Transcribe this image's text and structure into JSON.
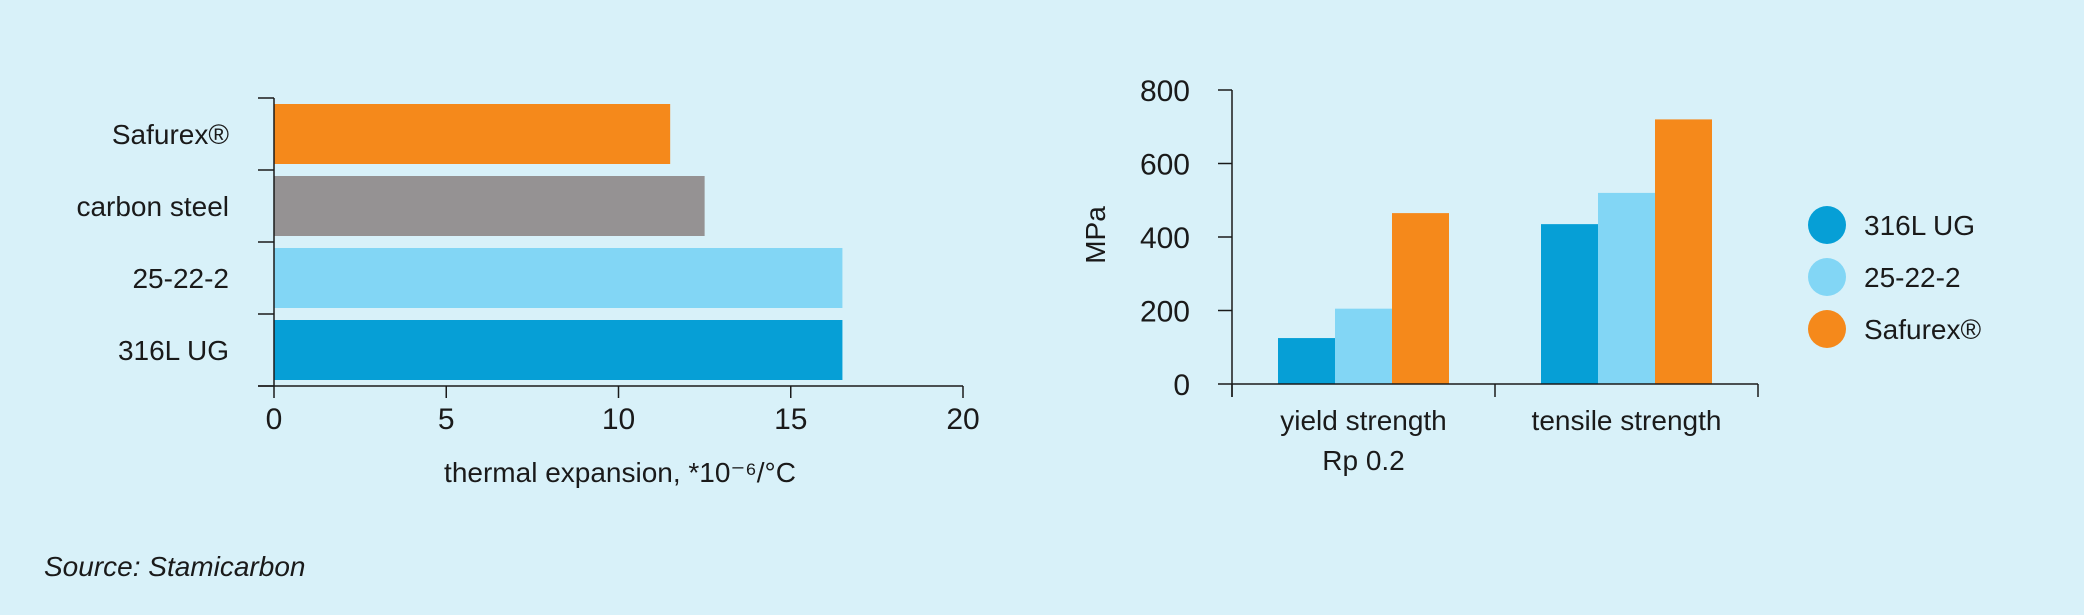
{
  "colors": {
    "background": "#d8f1f9",
    "316L UG": "#069fd6",
    "25-22-2": "#82d6f5",
    "carbon steel": "#959293",
    "Safurex®": "#f5891b",
    "axis": "#1a1a1a"
  },
  "chart_data": [
    {
      "type": "bar",
      "orientation": "horizontal",
      "categories": [
        "Safurex®",
        "carbon steel",
        "25-22-2",
        "316L UG"
      ],
      "values": [
        11.5,
        12.5,
        16.5,
        16.5
      ],
      "xlabel": "thermal expansion, *10⁻⁶/°C",
      "ylabel": "",
      "xlim": [
        0,
        20
      ],
      "xticks": [
        "0",
        "5",
        "10",
        "15",
        "20"
      ],
      "grid": false,
      "legend": "none"
    },
    {
      "type": "bar",
      "orientation": "vertical",
      "categories": [
        "yield strength\nRp 0.2",
        "tensile strength"
      ],
      "category_lines": [
        [
          "yield strength",
          "Rp 0.2"
        ],
        [
          "tensile strength"
        ]
      ],
      "series": [
        {
          "name": "316L UG",
          "values": [
            125,
            435
          ]
        },
        {
          "name": "25-22-2",
          "values": [
            205,
            520
          ]
        },
        {
          "name": "Safurex®",
          "values": [
            465,
            720
          ]
        }
      ],
      "ylabel": "MPa",
      "xlabel": "",
      "ylim": [
        0,
        800
      ],
      "yticks": [
        "0",
        "200",
        "400",
        "600",
        "800"
      ],
      "grid": false,
      "legend": "right"
    }
  ],
  "source": "Source: Stamicarbon"
}
